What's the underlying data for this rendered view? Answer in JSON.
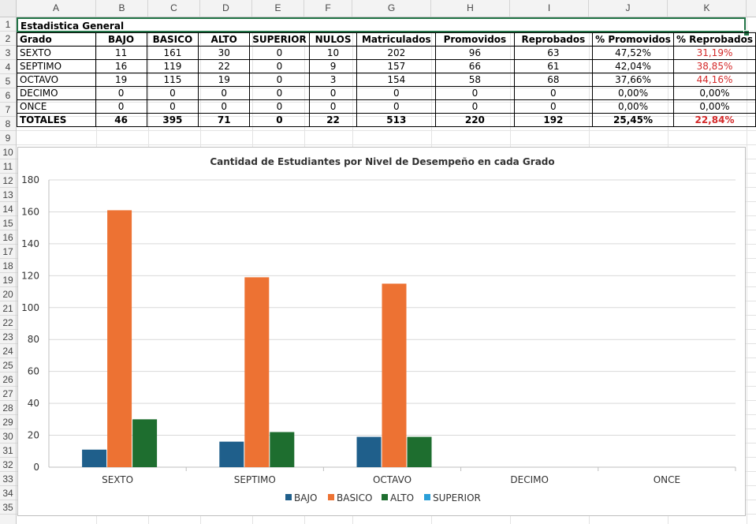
{
  "columns": [
    "A",
    "B",
    "C",
    "D",
    "E",
    "F",
    "G",
    "H",
    "I",
    "J",
    "K"
  ],
  "rows": [
    "1",
    "2",
    "3",
    "4",
    "5",
    "6",
    "7",
    "8",
    "9",
    "10",
    "11",
    "12",
    "13",
    "14",
    "15",
    "16",
    "17",
    "18",
    "19",
    "20",
    "21",
    "22",
    "23",
    "24",
    "25",
    "26",
    "27",
    "28",
    "29",
    "30",
    "31",
    "32",
    "33",
    "34",
    "35"
  ],
  "sheet": {
    "title": "Estadistica General",
    "headers": [
      "Grado",
      "BAJO",
      "BASICO",
      "ALTO",
      "SUPERIOR",
      "NULOS",
      "Matriculados",
      "Promovidos",
      "Reprobados",
      "% Promovidos",
      "% Reprobados"
    ],
    "data_rows": [
      [
        "SEXTO",
        "11",
        "161",
        "30",
        "0",
        "10",
        "202",
        "96",
        "63",
        "47,52%",
        "31,19%"
      ],
      [
        "SEPTIMO",
        "16",
        "119",
        "22",
        "0",
        "9",
        "157",
        "66",
        "61",
        "42,04%",
        "38,85%"
      ],
      [
        "OCTAVO",
        "19",
        "115",
        "19",
        "0",
        "3",
        "154",
        "58",
        "68",
        "37,66%",
        "44,16%"
      ],
      [
        "DECIMO",
        "0",
        "0",
        "0",
        "0",
        "0",
        "0",
        "0",
        "0",
        "0,00%",
        "0,00%"
      ],
      [
        "ONCE",
        "0",
        "0",
        "0",
        "0",
        "0",
        "0",
        "0",
        "0",
        "0,00%",
        "0,00%"
      ]
    ],
    "totals": [
      "TOTALES",
      "46",
      "395",
      "71",
      "0",
      "22",
      "513",
      "220",
      "192",
      "25,45%",
      "22,84%"
    ],
    "reprobados_color": "#d42a2a"
  },
  "chart_data": {
    "type": "bar",
    "title": "Cantidad de Estudiantes por Nivel de Desempeño en cada Grado",
    "categories": [
      "SEXTO",
      "SEPTIMO",
      "OCTAVO",
      "DECIMO",
      "ONCE"
    ],
    "series": [
      {
        "name": "BAJO",
        "values": [
          11,
          16,
          19,
          0,
          0
        ],
        "color": "#1f5f8b"
      },
      {
        "name": "BASICO",
        "values": [
          161,
          119,
          115,
          0,
          0
        ],
        "color": "#ed7233"
      },
      {
        "name": "ALTO",
        "values": [
          30,
          22,
          19,
          0,
          0
        ],
        "color": "#1e6e2f"
      },
      {
        "name": "SUPERIOR",
        "values": [
          0,
          0,
          0,
          0,
          0
        ],
        "color": "#2a9fd8"
      }
    ],
    "ylim": [
      0,
      180
    ],
    "yticks": [
      0,
      20,
      40,
      60,
      80,
      100,
      120,
      140,
      160,
      180
    ],
    "grid": true,
    "legend": "bottom"
  }
}
